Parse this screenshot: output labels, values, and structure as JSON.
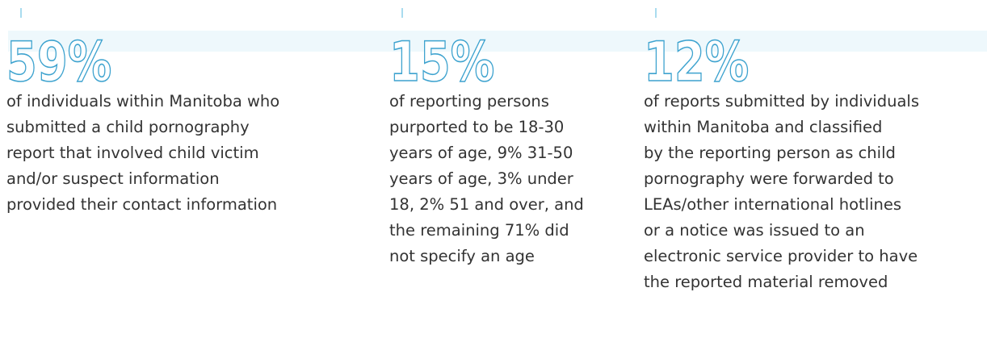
{
  "stats": [
    {
      "value": "59%",
      "lines": [
        "of individuals within Manitoba who",
        "submitted a child pornography",
        "report that involved child victim",
        "and/or suspect information",
        "provided their contact information"
      ]
    },
    {
      "value": "15%",
      "lines": [
        "of reporting persons",
        "purported to be 18-30",
        "years of age, 9% 31-50",
        "years of age, 3% under",
        "18, 2% 51 and over, and",
        "the remaining 71% did",
        "not specify an age"
      ]
    },
    {
      "value": "12%",
      "lines": [
        "of reports submitted by individuals",
        "within Manitoba and classified",
        "by the reporting person as child",
        "pornography were forwarded to",
        "LEAs/other international hotlines",
        "or a notice was issued to an",
        "electronic service provider to have",
        "the reported material removed"
      ]
    }
  ]
}
